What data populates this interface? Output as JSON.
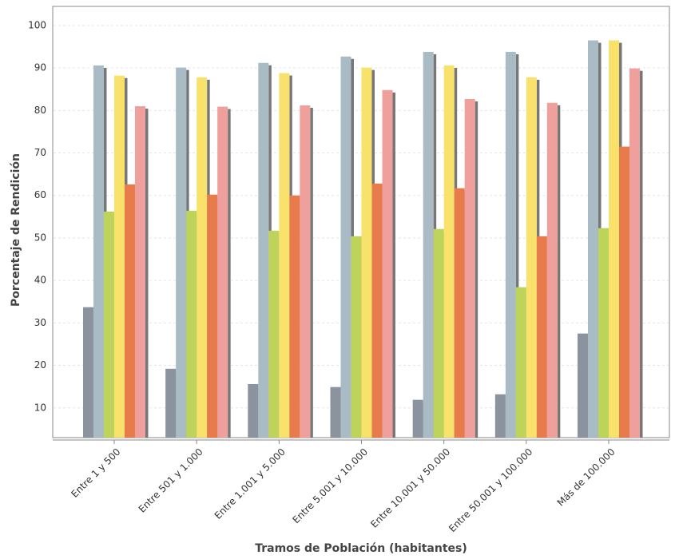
{
  "chart_data": {
    "type": "bar",
    "y_label": "Porcentaje de Rendición",
    "x_label": "Tramos de Población (habitantes)",
    "categories": [
      "Entre 1 y 500",
      "Entre 501 y 1.000",
      "Entre 1.001 y 5.000",
      "Entre 5.001 y 10.000",
      "Entre 10.001 y 50.000",
      "Entre 50.001 y 100.000",
      "Más de 100.000"
    ],
    "series": [
      {
        "color": "#8a939e",
        "values": [
          33.7,
          19.2,
          15.6,
          14.9,
          11.9,
          13.2,
          27.5
        ]
      },
      {
        "color": "#a9bcc6",
        "values": [
          90.6,
          90.1,
          91.2,
          92.7,
          93.8,
          93.8,
          96.5
        ]
      },
      {
        "color": "#bdd35a",
        "values": [
          56.2,
          56.4,
          51.7,
          50.4,
          52.1,
          38.4,
          52.3
        ]
      },
      {
        "color": "#f9e26c",
        "values": [
          88.2,
          87.8,
          88.8,
          90.1,
          90.6,
          87.8,
          96.5
        ]
      },
      {
        "color": "#e87b4b",
        "values": [
          62.6,
          60.2,
          60.0,
          62.8,
          61.7,
          50.4,
          71.5
        ]
      },
      {
        "color": "#f0a09c",
        "values": [
          81.0,
          80.9,
          81.2,
          84.8,
          82.7,
          81.8,
          89.9
        ]
      }
    ],
    "ylim": [
      3,
      104.5
    ],
    "yticks": [
      10,
      20,
      30,
      40,
      50,
      60,
      70,
      80,
      90,
      100
    ],
    "grid": true
  }
}
